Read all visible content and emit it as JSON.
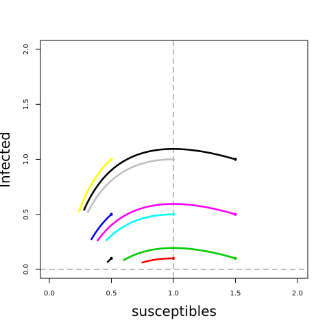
{
  "chart_data": {
    "type": "line",
    "xlabel": "susceptibles",
    "ylabel": "Infected",
    "xlim": [
      0,
      2
    ],
    "ylim": [
      0,
      2
    ],
    "x_ticks": [
      "0.0",
      "0.5",
      "1.0",
      "1.5",
      "2.0"
    ],
    "y_ticks": [
      "0.0",
      "0.5",
      "1.0",
      "1.5",
      "2.0"
    ],
    "grid": false,
    "reference_lines": [
      {
        "orientation": "vertical",
        "value": 1.0,
        "style": "dashed",
        "color": "#bebebe"
      },
      {
        "orientation": "horizontal",
        "value": 0.0,
        "style": "dashed",
        "color": "#bebebe"
      }
    ],
    "series": [
      {
        "color": "#ffff00",
        "start": {
          "x": 0.5,
          "y": 1.0
        },
        "end_x": 0.24
      },
      {
        "color": "#000000",
        "start": {
          "x": 1.5,
          "y": 1.0
        },
        "end_x": 0.28
      },
      {
        "color": "#bebebe",
        "start": {
          "x": 1.0,
          "y": 1.0
        },
        "end_x": 0.31
      },
      {
        "color": "#0000ff",
        "start": {
          "x": 0.5,
          "y": 0.5
        },
        "end_x": 0.34
      },
      {
        "color": "#ff00ff",
        "start": {
          "x": 1.5,
          "y": 0.5
        },
        "end_x": 0.39
      },
      {
        "color": "#00ffff",
        "start": {
          "x": 1.0,
          "y": 0.5
        },
        "end_x": 0.46
      },
      {
        "color": "#000000",
        "start": {
          "x": 0.5,
          "y": 0.1
        },
        "end_x": 0.47
      },
      {
        "color": "#00cd00",
        "start": {
          "x": 1.5,
          "y": 0.1
        },
        "end_x": 0.6
      },
      {
        "color": "#ff0000",
        "start": {
          "x": 1.0,
          "y": 0.1
        },
        "end_x": 0.75
      }
    ]
  }
}
